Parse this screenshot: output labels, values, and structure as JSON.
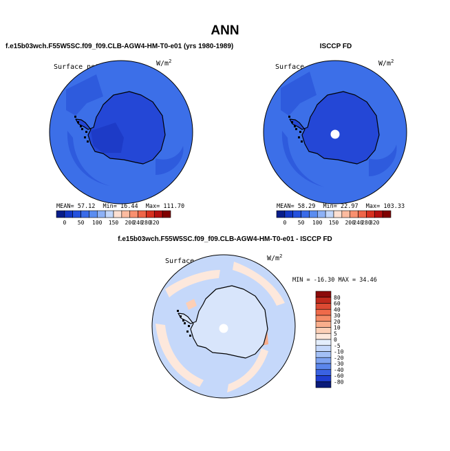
{
  "page": {
    "title": "ANN"
  },
  "chart_data": [
    {
      "type": "heatmap",
      "projection": "south polar stereographic",
      "header": "f.e15b03wch.F55W5SC.f09_f09.CLB-AGW4-HM-T0-e01 (yrs 1980-1989)",
      "variable": "Surface net SW flux",
      "units": "W/m",
      "units_exp": "2",
      "stats": {
        "mean_label": "MEAN=",
        "mean": "57.12",
        "min_label": "Min=",
        "min": "16.44",
        "max_label": "Max=",
        "max": "111.70"
      },
      "colorbar": {
        "orientation": "horizontal",
        "levels": [
          "0",
          "50",
          "100",
          "150",
          "200",
          "240",
          "280",
          "320"
        ],
        "colors": [
          "#081d8a",
          "#1337c4",
          "#2451de",
          "#3a6be8",
          "#5a8cf0",
          "#8db1f6",
          "#c3d7fa",
          "#fde0d2",
          "#fcbba0",
          "#f9906f",
          "#ef6548",
          "#d7301f",
          "#b30f0f",
          "#7f0000"
        ]
      },
      "dominant_color": "#2c59dc"
    },
    {
      "type": "heatmap",
      "projection": "south polar stereographic",
      "header": "ISCCP FD",
      "variable": "Surface net SW flux",
      "units": "W/m",
      "units_exp": "2",
      "stats": {
        "mean_label": "MEAN=",
        "mean": "58.29",
        "min_label": "Min=",
        "min": "22.97",
        "max_label": "Max=",
        "max": "103.33"
      },
      "colorbar": {
        "orientation": "horizontal",
        "levels": [
          "0",
          "50",
          "100",
          "150",
          "200",
          "240",
          "280",
          "320"
        ],
        "colors": [
          "#081d8a",
          "#1337c4",
          "#2451de",
          "#3a6be8",
          "#5a8cf0",
          "#8db1f6",
          "#c3d7fa",
          "#fde0d2",
          "#fcbba0",
          "#f9906f",
          "#ef6548",
          "#d7301f",
          "#b30f0f",
          "#7f0000"
        ]
      },
      "dominant_color": "#2c59dc"
    },
    {
      "type": "heatmap",
      "projection": "south polar stereographic",
      "header": "f.e15b03wch.F55W5SC.f09_f09.CLB-AGW4-HM-T0-e01 - ISCCP FD",
      "variable": "Surface net SW flux",
      "units": "W/m",
      "units_exp": "2",
      "stats_text": "MIN = -16.30 MAX =  34.46",
      "stats": {
        "min": -16.3,
        "max": 34.46
      },
      "colorbar": {
        "orientation": "vertical",
        "levels": [
          "80",
          "60",
          "40",
          "30",
          "20",
          "10",
          "5",
          "0",
          "-5",
          "-10",
          "-20",
          "-30",
          "-40",
          "-60",
          "-80"
        ],
        "colors": [
          "#8b0a0a",
          "#c02a1d",
          "#dc4a33",
          "#ef6a4a",
          "#f58c68",
          "#f9ae8c",
          "#fccfb6",
          "#fde8dc",
          "#e4eefc",
          "#c5d8fa",
          "#a3c0f6",
          "#7ea3f1",
          "#5b86ec",
          "#3a62e2",
          "#1f3ed0",
          "#0a1b7a"
        ]
      },
      "dominant_color": "#c5d8fa"
    }
  ]
}
